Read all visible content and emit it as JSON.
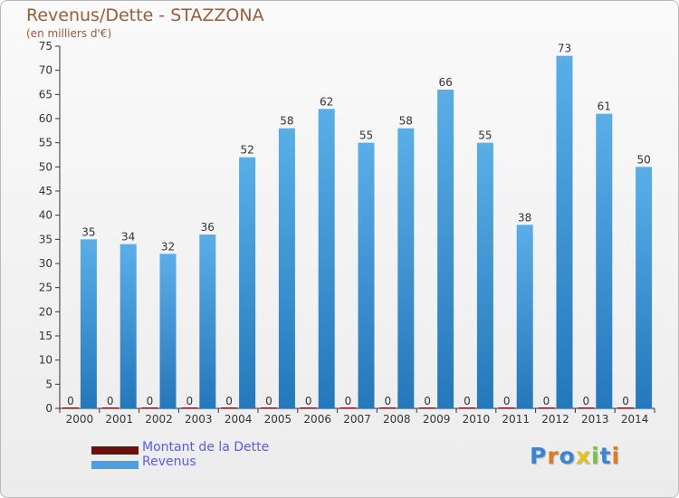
{
  "header": {
    "title": "Revenus/Dette - STAZZONA",
    "subtitle": "(en milliers d'€)"
  },
  "colors": {
    "revenus_top": "#5aaee8",
    "revenus_bottom": "#2478bb",
    "dette": "#6b0f0f",
    "axis": "#333333",
    "grid": "#d8d8d8"
  },
  "chart_data": {
    "type": "bar",
    "categories": [
      "2000",
      "2001",
      "2002",
      "2003",
      "2004",
      "2005",
      "2006",
      "2007",
      "2008",
      "2009",
      "2010",
      "2011",
      "2012",
      "2013",
      "2014"
    ],
    "series": [
      {
        "name": "Montant de la Dette",
        "values": [
          0,
          0,
          0,
          0,
          0,
          0,
          0,
          0,
          0,
          0,
          0,
          0,
          0,
          0,
          0
        ]
      },
      {
        "name": "Revenus",
        "values": [
          35,
          34,
          32,
          36,
          52,
          58,
          62,
          55,
          58,
          66,
          55,
          38,
          73,
          61,
          50
        ]
      }
    ],
    "ylim": [
      0,
      75
    ],
    "yticks": [
      0,
      5,
      10,
      15,
      20,
      25,
      30,
      35,
      40,
      45,
      50,
      55,
      60,
      65,
      70,
      75
    ],
    "grid": false,
    "legend": "bottom-left"
  },
  "legend": {
    "items": [
      {
        "label": "Montant de la Dette",
        "color": "#6b0f0f"
      },
      {
        "label": "Revenus",
        "color": "#4a9fe0"
      }
    ]
  },
  "logo": {
    "text": "Proxiti"
  }
}
